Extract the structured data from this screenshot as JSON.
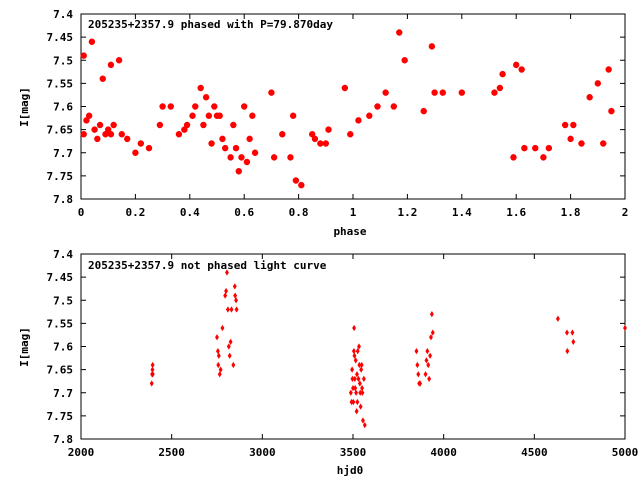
{
  "colors": {
    "points": "#ff0000",
    "axes": "#000000",
    "background": "#ffffff"
  },
  "chart_data": [
    {
      "type": "scatter",
      "title": "205235+2357.9 phased with P=79.870day",
      "xlabel": "phase",
      "ylabel": "I[mag]",
      "xlim": [
        0,
        2
      ],
      "ylim": [
        7.8,
        7.4
      ],
      "y_inverted": true,
      "xticks": [
        "0",
        "0.2",
        "0.4",
        "0.6",
        "0.8",
        "1",
        "1.2",
        "1.4",
        "1.6",
        "1.8",
        "2"
      ],
      "yticks": [
        "7.4",
        "7.45",
        "7.5",
        "7.55",
        "7.6",
        "7.65",
        "7.7",
        "7.75",
        "7.8"
      ],
      "marker": "filled-circle",
      "x": [
        0.01,
        0.01,
        0.02,
        0.03,
        0.04,
        0.05,
        0.06,
        0.07,
        0.08,
        0.09,
        0.1,
        0.11,
        0.11,
        0.12,
        0.14,
        0.15,
        0.17,
        0.2,
        0.22,
        0.25,
        0.29,
        0.3,
        0.33,
        0.36,
        0.38,
        0.39,
        0.41,
        0.42,
        0.44,
        0.45,
        0.46,
        0.47,
        0.48,
        0.49,
        0.5,
        0.51,
        0.52,
        0.53,
        0.55,
        0.56,
        0.57,
        0.58,
        0.59,
        0.6,
        0.61,
        0.62,
        0.63,
        0.64,
        0.7,
        0.71,
        0.74,
        0.77,
        0.78,
        0.79,
        0.81,
        0.85,
        0.86,
        0.88,
        0.9,
        0.91,
        0.97,
        0.99,
        1.02,
        1.06,
        1.09,
        1.12,
        1.15,
        1.17,
        1.19,
        1.26,
        1.29,
        1.3,
        1.33,
        1.4,
        1.52,
        1.54,
        1.55,
        1.59,
        1.6,
        1.62,
        1.63,
        1.67,
        1.7,
        1.72,
        1.78,
        1.8,
        1.81,
        1.84,
        1.87,
        1.9,
        1.92,
        1.94,
        1.95
      ],
      "y": [
        7.66,
        7.49,
        7.63,
        7.62,
        7.46,
        7.65,
        7.67,
        7.64,
        7.54,
        7.66,
        7.65,
        7.51,
        7.66,
        7.64,
        7.5,
        7.66,
        7.67,
        7.7,
        7.68,
        7.69,
        7.64,
        7.6,
        7.6,
        7.66,
        7.65,
        7.64,
        7.62,
        7.6,
        7.56,
        7.64,
        7.58,
        7.62,
        7.68,
        7.6,
        7.62,
        7.62,
        7.67,
        7.69,
        7.71,
        7.64,
        7.69,
        7.74,
        7.71,
        7.6,
        7.72,
        7.67,
        7.62,
        7.7,
        7.57,
        7.71,
        7.66,
        7.71,
        7.62,
        7.76,
        7.77,
        7.66,
        7.67,
        7.68,
        7.68,
        7.65,
        7.56,
        7.66,
        7.63,
        7.62,
        7.6,
        7.57,
        7.6,
        7.44,
        7.5,
        7.61,
        7.47,
        7.57,
        7.57,
        7.57,
        7.57,
        7.56,
        7.53,
        7.71,
        7.51,
        7.52,
        7.69,
        7.69,
        7.71,
        7.69,
        7.64,
        7.67,
        7.64,
        7.68,
        7.58,
        7.55,
        7.68,
        7.52,
        7.61
      ]
    },
    {
      "type": "scatter",
      "title": "205235+2357.9 not phased light curve",
      "xlabel": "hjd0",
      "ylabel": "I[mag]",
      "xlim": [
        2000,
        5000
      ],
      "ylim": [
        7.8,
        7.4
      ],
      "y_inverted": true,
      "xticks": [
        "2000",
        "2500",
        "3000",
        "3500",
        "4000",
        "4500",
        "5000"
      ],
      "yticks": [
        "7.4",
        "7.45",
        "7.5",
        "7.55",
        "7.6",
        "7.65",
        "7.7",
        "7.75",
        "7.8"
      ],
      "marker": "small-diamond",
      "x": [
        2390,
        2392,
        2394,
        2395,
        2396,
        2750,
        2755,
        2757,
        2760,
        2765,
        2770,
        2780,
        2795,
        2800,
        2805,
        2810,
        2815,
        2820,
        2825,
        2830,
        2840,
        2848,
        2850,
        2855,
        2858,
        3488,
        3492,
        3495,
        3497,
        3500,
        3502,
        3505,
        3506,
        3508,
        3510,
        3512,
        3515,
        3517,
        3520,
        3522,
        3524,
        3526,
        3530,
        3533,
        3535,
        3538,
        3540,
        3542,
        3545,
        3548,
        3550,
        3552,
        3555,
        3560,
        3565,
        3850,
        3855,
        3860,
        3865,
        3870,
        3900,
        3905,
        3910,
        3915,
        3920,
        3925,
        3930,
        3935,
        3940,
        4630,
        4680,
        4682,
        4710,
        4715,
        5000
      ],
      "y": [
        7.68,
        7.66,
        7.65,
        7.64,
        7.66,
        7.58,
        7.61,
        7.64,
        7.62,
        7.66,
        7.65,
        7.56,
        7.49,
        7.48,
        7.44,
        7.52,
        7.6,
        7.62,
        7.59,
        7.52,
        7.64,
        7.47,
        7.49,
        7.5,
        7.52,
        7.7,
        7.72,
        7.65,
        7.67,
        7.69,
        7.72,
        7.61,
        7.56,
        7.62,
        7.67,
        7.69,
        7.63,
        7.7,
        7.74,
        7.66,
        7.72,
        7.61,
        7.67,
        7.6,
        7.64,
        7.68,
        7.7,
        7.73,
        7.65,
        7.64,
        7.69,
        7.7,
        7.76,
        7.67,
        7.77,
        7.61,
        7.64,
        7.66,
        7.68,
        7.68,
        7.66,
        7.63,
        7.61,
        7.64,
        7.67,
        7.62,
        7.58,
        7.53,
        7.57,
        7.54,
        7.57,
        7.61,
        7.57,
        7.59,
        7.56
      ]
    }
  ]
}
